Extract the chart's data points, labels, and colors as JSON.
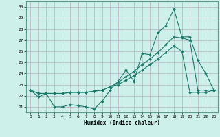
{
  "x": [
    0,
    1,
    2,
    3,
    4,
    5,
    6,
    7,
    8,
    9,
    10,
    11,
    12,
    13,
    14,
    15,
    16,
    17,
    18,
    19,
    20,
    21,
    22,
    23
  ],
  "line1": [
    22.5,
    21.9,
    22.2,
    21.0,
    21.0,
    21.2,
    21.1,
    21.0,
    20.8,
    21.5,
    22.5,
    23.3,
    24.3,
    23.3,
    25.8,
    25.7,
    27.7,
    28.3,
    29.8,
    27.3,
    27.3,
    25.2,
    24.0,
    22.5
  ],
  "line2": [
    22.5,
    22.2,
    22.2,
    22.2,
    22.2,
    22.3,
    22.3,
    22.3,
    22.4,
    22.5,
    22.8,
    23.2,
    23.7,
    24.2,
    24.8,
    25.3,
    25.9,
    26.6,
    27.3,
    27.2,
    27.0,
    22.5,
    22.5,
    22.5
  ],
  "line3": [
    22.5,
    22.2,
    22.2,
    22.2,
    22.2,
    22.3,
    22.3,
    22.3,
    22.4,
    22.5,
    22.8,
    23.0,
    23.4,
    23.8,
    24.3,
    24.8,
    25.3,
    25.9,
    26.5,
    26.0,
    22.3,
    22.3,
    22.3,
    22.5
  ],
  "line_color": "#1a7a6a",
  "bg_color": "#cef0eb",
  "grid_color": "#b8b0c0",
  "xlabel": "Humidex (Indice chaleur)",
  "xlim": [
    -0.5,
    23.5
  ],
  "ylim": [
    20.5,
    30.5
  ],
  "yticks": [
    21,
    22,
    23,
    24,
    25,
    26,
    27,
    28,
    29,
    30
  ],
  "xticks": [
    0,
    1,
    2,
    3,
    4,
    5,
    6,
    7,
    8,
    9,
    10,
    11,
    12,
    13,
    14,
    15,
    16,
    17,
    18,
    19,
    20,
    21,
    22,
    23
  ],
  "marker": "D",
  "markersize": 2.0,
  "linewidth": 0.8
}
